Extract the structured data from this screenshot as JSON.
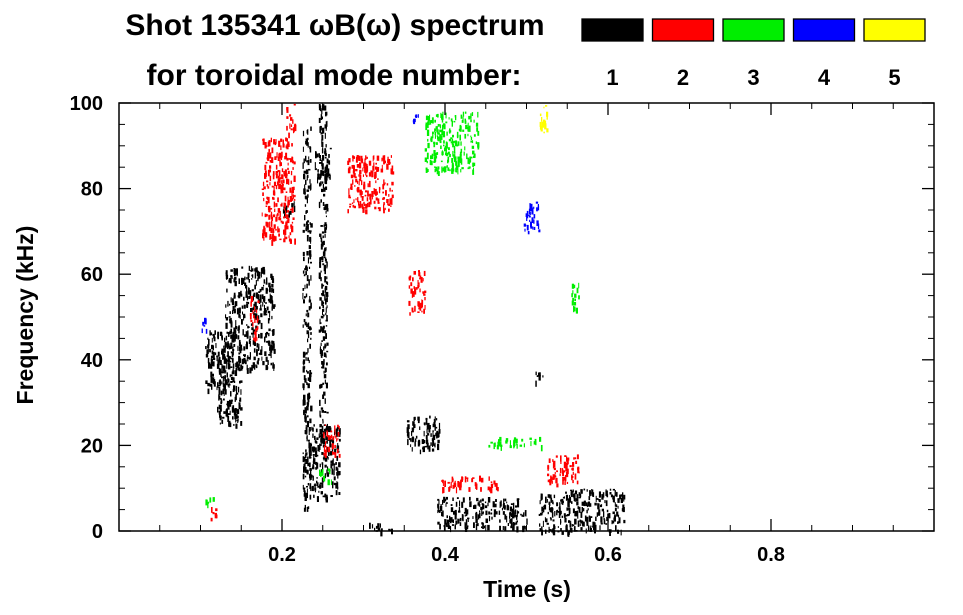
{
  "chart_data": {
    "type": "scatter",
    "title_line1": "Shot 135341 ωB(ω) spectrum",
    "title_line2": "for toroidal mode number:",
    "xlabel": "Time (s)",
    "ylabel": "Frequency (kHz)",
    "xlim": [
      0.0,
      1.0
    ],
    "ylim": [
      0,
      100
    ],
    "x_ticks": [
      "0.2",
      "0.4",
      "0.6",
      "0.8"
    ],
    "y_ticks": [
      "0",
      "20",
      "40",
      "60",
      "80",
      "100"
    ],
    "grid": false,
    "legend_placement": "top-right",
    "series": [
      {
        "name": "1",
        "color": "#000000",
        "regions": [
          {
            "t0": 0.105,
            "t1": 0.14,
            "f0": 33,
            "f1": 47
          },
          {
            "t0": 0.13,
            "t1": 0.19,
            "f0": 38,
            "f1": 62
          },
          {
            "t0": 0.12,
            "t1": 0.15,
            "f0": 25,
            "f1": 40
          },
          {
            "t0": 0.2,
            "t1": 0.215,
            "f0": 74,
            "f1": 78
          },
          {
            "t0": 0.225,
            "t1": 0.235,
            "f0": 5,
            "f1": 95
          },
          {
            "t0": 0.235,
            "t1": 0.27,
            "f0": 8,
            "f1": 25
          },
          {
            "t0": 0.24,
            "t1": 0.26,
            "f0": 82,
            "f1": 90
          },
          {
            "t0": 0.245,
            "t1": 0.255,
            "f0": 20,
            "f1": 100
          },
          {
            "t0": 0.305,
            "t1": 0.335,
            "f0": 0,
            "f1": 2
          },
          {
            "t0": 0.352,
            "t1": 0.395,
            "f0": 19,
            "f1": 27
          },
          {
            "t0": 0.39,
            "t1": 0.49,
            "f0": 1,
            "f1": 8
          },
          {
            "t0": 0.48,
            "t1": 0.5,
            "f0": 1,
            "f1": 5
          },
          {
            "t0": 0.515,
            "t1": 0.62,
            "f0": 0,
            "f1": 10
          },
          {
            "t0": 0.51,
            "t1": 0.52,
            "f0": 35,
            "f1": 38
          }
        ]
      },
      {
        "name": "2",
        "color": "#ff0000",
        "regions": [
          {
            "t0": 0.175,
            "t1": 0.215,
            "f0": 68,
            "f1": 92
          },
          {
            "t0": 0.16,
            "t1": 0.17,
            "f0": 45,
            "f1": 55
          },
          {
            "t0": 0.205,
            "t1": 0.215,
            "f0": 93,
            "f1": 100
          },
          {
            "t0": 0.25,
            "t1": 0.27,
            "f0": 18,
            "f1": 25
          },
          {
            "t0": 0.28,
            "t1": 0.335,
            "f0": 75,
            "f1": 88
          },
          {
            "t0": 0.355,
            "t1": 0.375,
            "f0": 51,
            "f1": 61
          },
          {
            "t0": 0.395,
            "t1": 0.465,
            "f0": 10,
            "f1": 13
          },
          {
            "t0": 0.525,
            "t1": 0.565,
            "f0": 11,
            "f1": 18
          },
          {
            "t0": 0.11,
            "t1": 0.12,
            "f0": 3,
            "f1": 6
          }
        ]
      },
      {
        "name": "3",
        "color": "#00ee00",
        "regions": [
          {
            "t0": 0.375,
            "t1": 0.44,
            "f0": 84,
            "f1": 98
          },
          {
            "t0": 0.105,
            "t1": 0.115,
            "f0": 6,
            "f1": 8
          },
          {
            "t0": 0.245,
            "t1": 0.26,
            "f0": 12,
            "f1": 15
          },
          {
            "t0": 0.45,
            "t1": 0.52,
            "f0": 20,
            "f1": 22
          },
          {
            "t0": 0.555,
            "t1": 0.565,
            "f0": 52,
            "f1": 58
          }
        ]
      },
      {
        "name": "4",
        "color": "#0000ff",
        "regions": [
          {
            "t0": 0.495,
            "t1": 0.515,
            "f0": 70,
            "f1": 77
          },
          {
            "t0": 0.098,
            "t1": 0.108,
            "f0": 47,
            "f1": 50
          },
          {
            "t0": 0.36,
            "t1": 0.37,
            "f0": 95,
            "f1": 98
          }
        ]
      },
      {
        "name": "5",
        "color": "#ffff00",
        "regions": [
          {
            "t0": 0.516,
            "t1": 0.525,
            "f0": 93,
            "f1": 100
          }
        ]
      }
    ]
  }
}
